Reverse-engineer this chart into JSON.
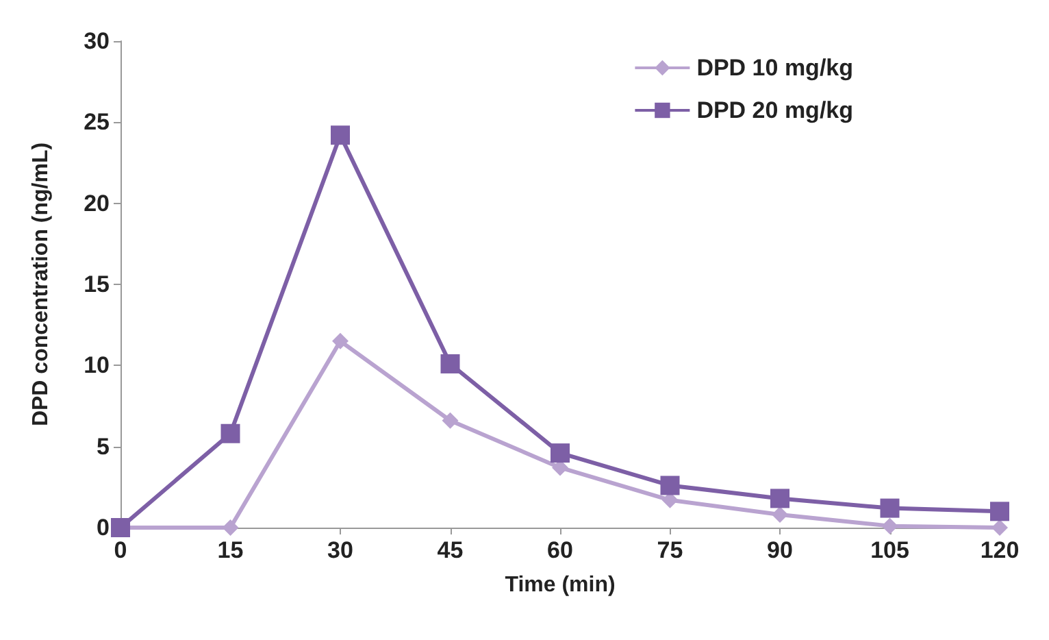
{
  "chart_data": {
    "type": "line",
    "xlabel": "Time (min)",
    "ylabel": "DPD concentration (ng/mL)",
    "x": [
      0,
      15,
      30,
      45,
      60,
      75,
      90,
      105,
      120
    ],
    "xlim": [
      0,
      120
    ],
    "xticks": [
      0,
      15,
      30,
      45,
      60,
      75,
      90,
      105,
      120
    ],
    "ylim": [
      0,
      30
    ],
    "yticks": [
      0,
      5,
      10,
      15,
      20,
      25,
      30
    ],
    "grid": false,
    "legend": "top right",
    "series": [
      {
        "name": "DPD 10 mg/kg",
        "color": "#b9a3d0",
        "marker": "diamond",
        "values": [
          0,
          0,
          11.5,
          6.6,
          3.7,
          1.7,
          0.8,
          0.1,
          0
        ]
      },
      {
        "name": "DPD 20 mg/kg",
        "color": "#7d5fa6",
        "marker": "square",
        "values": [
          0,
          5.8,
          24.2,
          10.1,
          4.6,
          2.6,
          1.8,
          1.2,
          1.0
        ]
      }
    ]
  }
}
